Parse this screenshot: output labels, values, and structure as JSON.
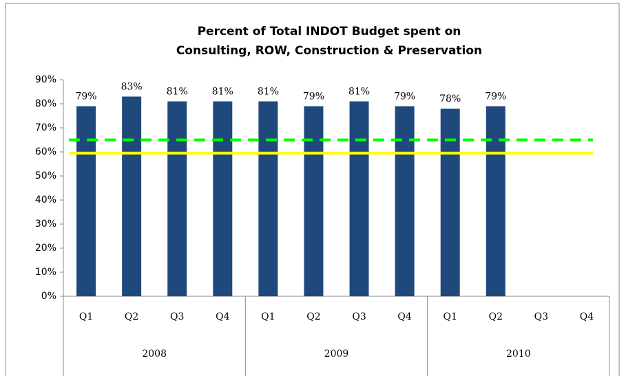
{
  "chart_data": {
    "type": "bar",
    "title": [
      "Percent of Total INDOT Budget spent on",
      "Consulting, ROW, Construction & Preservation"
    ],
    "categories": [
      "Q1",
      "Q2",
      "Q3",
      "Q4",
      "Q1",
      "Q2",
      "Q3",
      "Q4",
      "Q1",
      "Q2",
      "Q3",
      "Q4"
    ],
    "groups": [
      {
        "label": "2008",
        "span": 4
      },
      {
        "label": "2009",
        "span": 4
      },
      {
        "label": "2010",
        "span": 4
      }
    ],
    "values": [
      79,
      83,
      81,
      81,
      81,
      79,
      81,
      79,
      78,
      79,
      null,
      null
    ],
    "value_labels": [
      "79%",
      "83%",
      "81%",
      "81%",
      "81%",
      "79%",
      "81%",
      "79%",
      "78%",
      "79%",
      null,
      null
    ],
    "color": "#1f497d",
    "ylim": [
      0,
      90
    ],
    "yticks": [
      {
        "value": 0,
        "label": "0%"
      },
      {
        "value": 10,
        "label": "10%"
      },
      {
        "value": 20,
        "label": "20%"
      },
      {
        "value": 30,
        "label": "30%"
      },
      {
        "value": 40,
        "label": "40%"
      },
      {
        "value": 50,
        "label": "50%"
      },
      {
        "value": 60,
        "label": "60%"
      },
      {
        "value": 70,
        "label": "70%"
      },
      {
        "value": 80,
        "label": "80%"
      },
      {
        "value": 90,
        "label": "90%"
      }
    ],
    "reference_lines": [
      {
        "value": 65,
        "color": "#00ff00",
        "style": "dashed"
      },
      {
        "value": 59.5,
        "color": "#ffff00",
        "style": "solid"
      }
    ],
    "grid": false
  }
}
